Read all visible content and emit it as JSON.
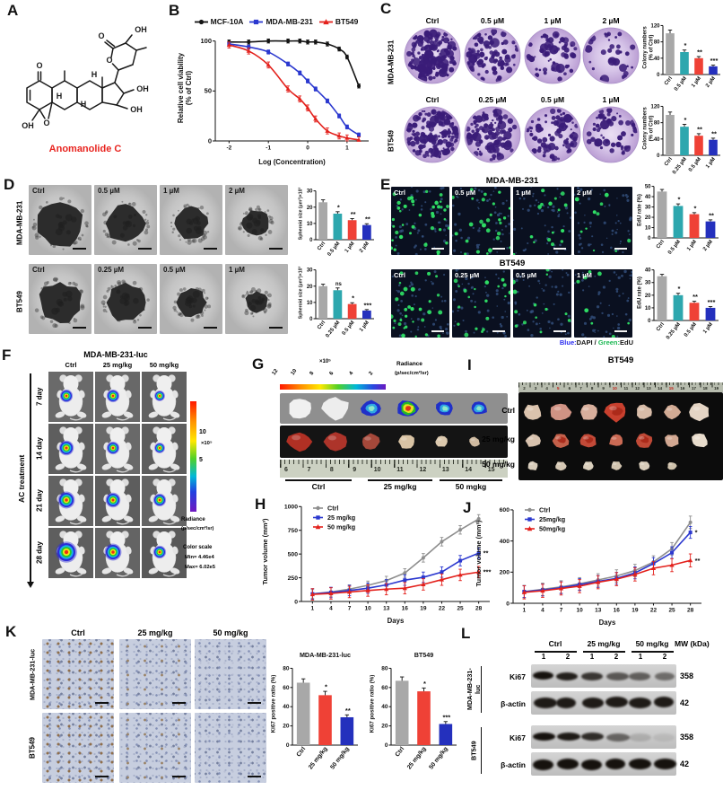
{
  "panel_letters": [
    "A",
    "B",
    "C",
    "D",
    "E",
    "F",
    "G",
    "H",
    "I",
    "J",
    "K",
    "L"
  ],
  "palette": {
    "gray": "#a8a8a8",
    "teal": "#2da7ae",
    "red": "#ef4136",
    "blue": "#2430bd"
  },
  "panelA": {
    "compound": "Anomanolide C",
    "atoms": [
      "O",
      "O",
      "O",
      "OH",
      "OH",
      "OH",
      "OH",
      "O",
      "H",
      "H",
      "H"
    ]
  },
  "panelB": {
    "legend": [
      {
        "label": "MCF-10A",
        "color": "#141414",
        "marker": "circle"
      },
      {
        "label": "MDA-MB-231",
        "color": "#2b38cf",
        "marker": "square"
      },
      {
        "label": "BT549",
        "color": "#e3211c",
        "marker": "triangle"
      }
    ]
  },
  "panelC": {
    "rows": [
      {
        "cell_line": "MDA-MB-231",
        "doses": [
          "Ctrl",
          "0.5 µM",
          "1 µM",
          "2 µM"
        ],
        "colony_density": [
          150,
          80,
          58,
          30
        ]
      },
      {
        "cell_line": "BT549",
        "doses": [
          "Ctrl",
          "0.25 µM",
          "0.5 µM",
          "1 µM"
        ],
        "colony_density": [
          140,
          95,
          72,
          52
        ]
      }
    ]
  },
  "panelD": {
    "rows": [
      {
        "cell_line": "MDA-MB-231",
        "doses": [
          "Ctrl",
          "0.5 µM",
          "1 µM",
          "2 µM"
        ],
        "spheroid_radius": [
          26,
          21,
          18,
          15
        ]
      },
      {
        "cell_line": "BT549",
        "doses": [
          "Ctrl",
          "0.25 µM",
          "0.5 µM",
          "1 µM"
        ],
        "spheroid_radius": [
          23,
          21,
          16,
          12
        ]
      }
    ]
  },
  "panelE": {
    "rows": [
      {
        "cell_line": "MDA-MB-231",
        "doses": [
          "Ctrl",
          "0.5 µM",
          "1 µM",
          "2 µM"
        ],
        "edu_dots": [
          40,
          26,
          16,
          10
        ]
      },
      {
        "cell_line": "BT549",
        "doses": [
          "Ctrl",
          "0.25 µM",
          "0.5 µM",
          "1 µM"
        ],
        "edu_dots": [
          32,
          20,
          13,
          8
        ]
      }
    ],
    "caption": [
      {
        "text": "Blue:",
        "color": "#2a2cf0"
      },
      {
        "text": "DAPI",
        "color": "#141414"
      },
      {
        "text": " / ",
        "color": "#141414"
      },
      {
        "text": "Green:",
        "color": "#1db954"
      },
      {
        "text": "EdU",
        "color": "#141414"
      }
    ]
  },
  "panelF": {
    "title": "MDA-MB-231-luc",
    "col_headers": [
      "Ctrl",
      "25 mg/kg",
      "50 mg/kg"
    ],
    "row_labels": [
      "7 day",
      "14 day",
      "21 day",
      "28 day"
    ],
    "side_label": "AC treatment",
    "scale": {
      "tick_hi": "10",
      "exp": "×10⁵",
      "tick_lo": "5"
    },
    "radiance": [
      "Radiance",
      "(p/sec/cm²/sr)"
    ],
    "color_scale": [
      "Color scale",
      "Min= 4.46e4",
      "Max= 6.02e5"
    ],
    "spot_radius": [
      [
        6,
        6,
        5
      ],
      [
        7,
        6,
        5
      ],
      [
        8,
        7,
        6
      ],
      [
        10,
        8,
        6
      ]
    ]
  },
  "panelG": {
    "scale_ticks": [
      "12",
      "10",
      "8",
      "6",
      "4",
      "2"
    ],
    "scale_exp": "×10⁵",
    "radiance": [
      "Radiance",
      "(p/sec/cm²/sr)"
    ],
    "ruler_numbers": [
      "6",
      "7",
      "8",
      "9",
      "10",
      "11",
      "12",
      "13",
      "14",
      "15"
    ],
    "groups": [
      "Ctrl",
      "25 mg/kg",
      "50 mgkg"
    ]
  },
  "panelI": {
    "title": "BT549",
    "row_labels": [
      "Ctrl",
      "25 mg/kg",
      "50 mg/kg"
    ],
    "ruler_numbers": [
      "2",
      "3",
      "4",
      "5",
      "6",
      "7",
      "8",
      "9",
      "10",
      "11",
      "12",
      "13",
      "14",
      "15",
      "16",
      "17",
      "18",
      "19"
    ],
    "tumors_per_row": [
      7,
      7,
      6
    ]
  },
  "panelK": {
    "col_headers": [
      "Ctrl",
      "25 mg/kg",
      "50 mg/kg"
    ],
    "row_labels": [
      "MDA-MB-231-luc",
      "BT549"
    ]
  },
  "panelL": {
    "groups": [
      "Ctrl",
      "25 mg/kg",
      "50 mg/kg"
    ],
    "lane_numbers": [
      "1",
      "2",
      "1",
      "2",
      "1",
      "2"
    ],
    "mw_header": "MW (kDa)",
    "cell_blocks": [
      {
        "cell_line": "MDA-MB-231-luc",
        "rows": [
          {
            "protein": "Ki67",
            "mw": "358",
            "bands": [
              1,
              0.92,
              0.8,
              0.62,
              0.58,
              0.5
            ]
          },
          {
            "protein": "β-actin",
            "mw": "42",
            "bands": [
              0.95,
              0.95,
              0.95,
              0.95,
              0.95,
              0.95
            ]
          }
        ]
      },
      {
        "cell_line": "BT549",
        "rows": [
          {
            "protein": "Ki67",
            "mw": "358",
            "bands": [
              1,
              0.95,
              0.85,
              0.55,
              0.15,
              0.08
            ]
          },
          {
            "protein": "β-actin",
            "mw": "42",
            "bands": [
              1,
              1,
              1,
              1,
              1,
              1
            ]
          }
        ]
      }
    ]
  },
  "chart_data": {
    "B": {
      "type": "line",
      "xlabel": "Log (Concentration)",
      "ylabel": [
        "Relative cell viability",
        "(% of Ctrl)"
      ],
      "xticks": [
        -2,
        -1,
        0,
        1
      ],
      "yticks": [
        0,
        50,
        100
      ],
      "xlim": [
        -2.35,
        1.55
      ],
      "ylim": [
        0,
        106
      ],
      "smooth": true,
      "x": [
        -2,
        -1.5,
        -1,
        -0.5,
        -0.2,
        0,
        0.2,
        0.5,
        0.8,
        1,
        1.3
      ],
      "series": [
        {
          "name": "MCF-10A",
          "color": "#141414",
          "marker": "circle",
          "err": 2,
          "y": [
            99,
            99,
            100,
            100,
            100,
            99,
            99,
            97,
            92,
            84,
            55
          ]
        },
        {
          "name": "MDA-MB-231",
          "color": "#2b38cf",
          "marker": "square",
          "err": 2,
          "y": [
            97,
            94,
            89,
            77,
            68,
            60,
            52,
            40,
            25,
            14,
            6
          ]
        },
        {
          "name": "BT549",
          "color": "#e3211c",
          "marker": "triangle",
          "err": 3,
          "y": [
            96,
            90,
            76,
            52,
            42,
            33,
            22,
            10,
            5,
            3,
            1
          ]
        }
      ]
    },
    "C1": {
      "type": "bar",
      "ylabel": [
        "Colony numbers",
        "(% of Ctrl)"
      ],
      "yticks": [
        0,
        40,
        80,
        120
      ],
      "ylim": [
        0,
        132
      ],
      "categories": [
        "Ctrl",
        "0.5 µM",
        "1 µM",
        "2 µM"
      ],
      "values": [
        101,
        55,
        40,
        20
      ],
      "errors": [
        8,
        5,
        4,
        3
      ],
      "colors": [
        "gray",
        "teal",
        "red",
        "blue"
      ],
      "sig": [
        "",
        "*",
        "**",
        "***"
      ]
    },
    "C2": {
      "type": "bar",
      "ylabel": [
        "Colony numbers",
        "(% of Ctrl)"
      ],
      "yticks": [
        0,
        40,
        80,
        120
      ],
      "ylim": [
        0,
        132
      ],
      "categories": [
        "Ctrl",
        "0.25 µM",
        "0.5 µM",
        "1 µM"
      ],
      "values": [
        99,
        70,
        48,
        38
      ],
      "errors": [
        7,
        6,
        5,
        4
      ],
      "colors": [
        "gray",
        "teal",
        "red",
        "blue"
      ],
      "sig": [
        "",
        "*",
        "**",
        "**"
      ]
    },
    "D1": {
      "type": "bar",
      "ylabel": [
        "Spheroid size (µm²)×10³"
      ],
      "yticks": [
        0,
        10,
        20,
        30
      ],
      "ylim": [
        0,
        32
      ],
      "categories": [
        "Ctrl",
        "0.5 µM",
        "1 µM",
        "2 µM"
      ],
      "values": [
        23,
        16,
        12,
        9
      ],
      "errors": [
        1.5,
        1.2,
        1,
        0.8
      ],
      "colors": [
        "gray",
        "teal",
        "red",
        "blue"
      ],
      "sig": [
        "",
        "*",
        "**",
        "**"
      ]
    },
    "D2": {
      "type": "bar",
      "ylabel": [
        "Spheroid size (µm²)×10³"
      ],
      "yticks": [
        0,
        10,
        20,
        30
      ],
      "ylim": [
        0,
        32
      ],
      "categories": [
        "Ctrl",
        "0.25 µM",
        "0.5 µM",
        "1 µM"
      ],
      "values": [
        20,
        17.5,
        9,
        5
      ],
      "errors": [
        1.2,
        1.4,
        0.8,
        0.6
      ],
      "colors": [
        "gray",
        "teal",
        "red",
        "blue"
      ],
      "sig": [
        "",
        "ns",
        "*",
        "***"
      ]
    },
    "E1": {
      "type": "bar",
      "ylabel": [
        "EdU rate (%)"
      ],
      "yticks": [
        0,
        10,
        20,
        30,
        40,
        50
      ],
      "ylim": [
        0,
        54
      ],
      "categories": [
        "Ctrl",
        "0.5 µM",
        "1 µM",
        "2 µM"
      ],
      "values": [
        45,
        31,
        23,
        16
      ],
      "errors": [
        2,
        2,
        1.5,
        1.5
      ],
      "colors": [
        "gray",
        "teal",
        "red",
        "blue"
      ],
      "sig": [
        "",
        "*",
        "*",
        "**"
      ]
    },
    "E2": {
      "type": "bar",
      "ylabel": [
        "EdU rate (%)"
      ],
      "yticks": [
        0,
        10,
        20,
        30,
        40
      ],
      "ylim": [
        0,
        44
      ],
      "categories": [
        "Ctrl",
        "0.25 µM",
        "0.5 µM",
        "1 µM"
      ],
      "values": [
        35,
        20,
        14,
        10
      ],
      "errors": [
        1.5,
        1.5,
        1.2,
        1
      ],
      "colors": [
        "gray",
        "teal",
        "red",
        "blue"
      ],
      "sig": [
        "",
        "*",
        "**",
        "***"
      ]
    },
    "H": {
      "type": "line",
      "xlabel": "Days",
      "ylabel": [
        "Tumor volume (mm³)"
      ],
      "legend": true,
      "xticks": [
        1,
        4,
        7,
        10,
        13,
        16,
        19,
        22,
        25,
        28
      ],
      "yticks": [
        0,
        250,
        500,
        750,
        1000
      ],
      "xlim": [
        -0.8,
        29.8
      ],
      "ylim": [
        0,
        1050
      ],
      "x": [
        1,
        4,
        7,
        10,
        13,
        16,
        19,
        22,
        25,
        28
      ],
      "series": [
        {
          "name": "Ctrl",
          "color": "#8e8e8e",
          "marker": "circle",
          "err": 45,
          "y": [
            80,
            100,
            130,
            170,
            220,
            300,
            460,
            630,
            755,
            870
          ]
        },
        {
          "name": "25 mg/kg",
          "color": "#2b38cf",
          "marker": "square",
          "err": 55,
          "y": [
            80,
            95,
            115,
            140,
            175,
            225,
            255,
            310,
            430,
            510
          ],
          "sig": "**"
        },
        {
          "name": "50 mg/kg",
          "color": "#e3211c",
          "marker": "triangle",
          "err": 60,
          "y": [
            75,
            85,
            100,
            115,
            130,
            140,
            180,
            230,
            280,
            310
          ],
          "sig": "***"
        }
      ]
    },
    "J": {
      "type": "line",
      "xlabel": "Days",
      "ylabel": [
        "Tumor volume (mm³)"
      ],
      "legend": true,
      "xticks": [
        1,
        4,
        7,
        10,
        13,
        16,
        19,
        22,
        25,
        28
      ],
      "yticks": [
        0,
        200,
        400,
        600
      ],
      "xlim": [
        -0.8,
        29.8
      ],
      "ylim": [
        0,
        640
      ],
      "x": [
        1,
        4,
        7,
        10,
        13,
        16,
        19,
        22,
        25,
        28
      ],
      "series": [
        {
          "name": "Ctrl",
          "color": "#8e8e8e",
          "marker": "circle",
          "err": 40,
          "y": [
            75,
            90,
            105,
            125,
            150,
            175,
            210,
            265,
            350,
            520
          ]
        },
        {
          "name": "25mg/kg",
          "color": "#2b38cf",
          "marker": "square",
          "err": 38,
          "y": [
            75,
            85,
            100,
            120,
            140,
            160,
            195,
            255,
            325,
            455
          ],
          "sig": "*"
        },
        {
          "name": "50mg/kg",
          "color": "#e3211c",
          "marker": "triangle",
          "err": 42,
          "y": [
            70,
            80,
            95,
            110,
            135,
            155,
            185,
            225,
            245,
            275
          ],
          "sig": "**"
        }
      ]
    },
    "K1": {
      "type": "bar",
      "title": "MDA-MB-231-luc",
      "ylabel": [
        "Ki67 positive ratio  (%)"
      ],
      "yticks": [
        0,
        20,
        40,
        60,
        80
      ],
      "ylim": [
        0,
        86
      ],
      "categories": [
        "Ctrl",
        "25 mg/kg",
        "50 mg/kg"
      ],
      "values": [
        65,
        52,
        29
      ],
      "errors": [
        4,
        4,
        2.5
      ],
      "colors": [
        "gray",
        "red",
        "blue"
      ],
      "sig": [
        "",
        "*",
        "**"
      ]
    },
    "K2": {
      "type": "bar",
      "title": "BT549",
      "ylabel": [
        "Ki67 positive ratio  (%)"
      ],
      "yticks": [
        0,
        20,
        40,
        60,
        80
      ],
      "ylim": [
        0,
        86
      ],
      "categories": [
        "Ctrl",
        "25 mg/kg",
        "50 mg/kg"
      ],
      "values": [
        67,
        56,
        22
      ],
      "errors": [
        4,
        3.5,
        2.5
      ],
      "colors": [
        "gray",
        "red",
        "blue"
      ],
      "sig": [
        "",
        "*",
        "***"
      ]
    }
  }
}
